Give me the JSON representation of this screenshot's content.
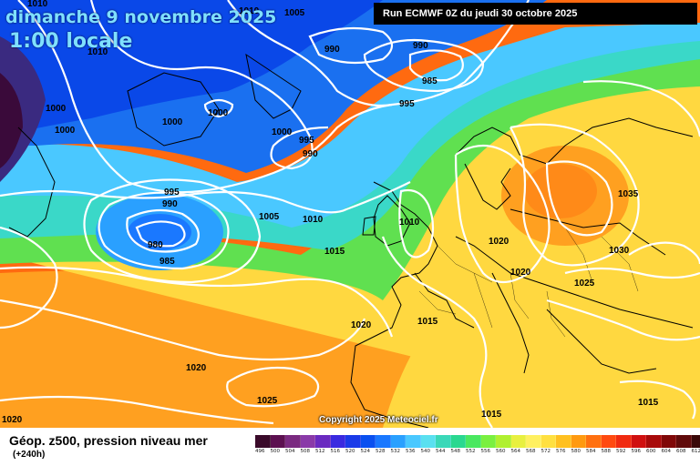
{
  "header": {
    "date_label": "dimanche 9 novembre 2025",
    "time_label": "1:00 locale",
    "run_label": "Run ECMWF 0Z du jeudi 30 octobre 2025"
  },
  "copyright": "Copyright 2025 Meteociel.fr",
  "legend": {
    "title": "Géop. z500, pression niveau mer",
    "subtitle": "(+240h)",
    "values": [
      "496",
      "500",
      "504",
      "508",
      "512",
      "516",
      "520",
      "524",
      "528",
      "532",
      "536",
      "540",
      "544",
      "548",
      "552",
      "556",
      "560",
      "564",
      "568",
      "572",
      "576",
      "580",
      "584",
      "588",
      "592",
      "596",
      "600",
      "604",
      "608",
      "612",
      "616"
    ],
    "colors": [
      "#3a0a2a",
      "#5c1050",
      "#7a2a80",
      "#8a3aa8",
      "#6a2ac0",
      "#3a2ae0",
      "#1a3ae8",
      "#0a50f0",
      "#1a78ff",
      "#2aa0ff",
      "#4ac8ff",
      "#5ae0f0",
      "#3ad8b8",
      "#2ad890",
      "#4ae860",
      "#7af040",
      "#b0f030",
      "#e8f040",
      "#fff060",
      "#ffe040",
      "#ffc020",
      "#ff9a10",
      "#ff7010",
      "#ff4a10",
      "#f02a10",
      "#d01010",
      "#a80a0a",
      "#800808",
      "#600a0a",
      "#3a0808",
      "#1a0505"
    ]
  },
  "isobars": {
    "h1": "1010",
    "h2": "1005",
    "h3": "1010",
    "h4": "1010",
    "h5": "990",
    "h6": "990",
    "h7": "985",
    "h8": "995",
    "h9": "1000",
    "h10": "1000",
    "h11": "1000",
    "h12": "1000",
    "h13": "995",
    "h14": "990",
    "h15": "1000",
    "h16": "995",
    "h17": "990",
    "h18": "980",
    "h19": "985",
    "h20": "1005",
    "h21": "1010",
    "h22": "1010",
    "h23": "1015",
    "h24": "1020",
    "h25": "1020",
    "h26": "1035",
    "h27": "1030",
    "h28": "1025",
    "h29": "1015",
    "h30": "1020",
    "h31": "1020",
    "h32": "1025",
    "h33": "1015",
    "h34": "1015",
    "h35": "1020"
  }
}
